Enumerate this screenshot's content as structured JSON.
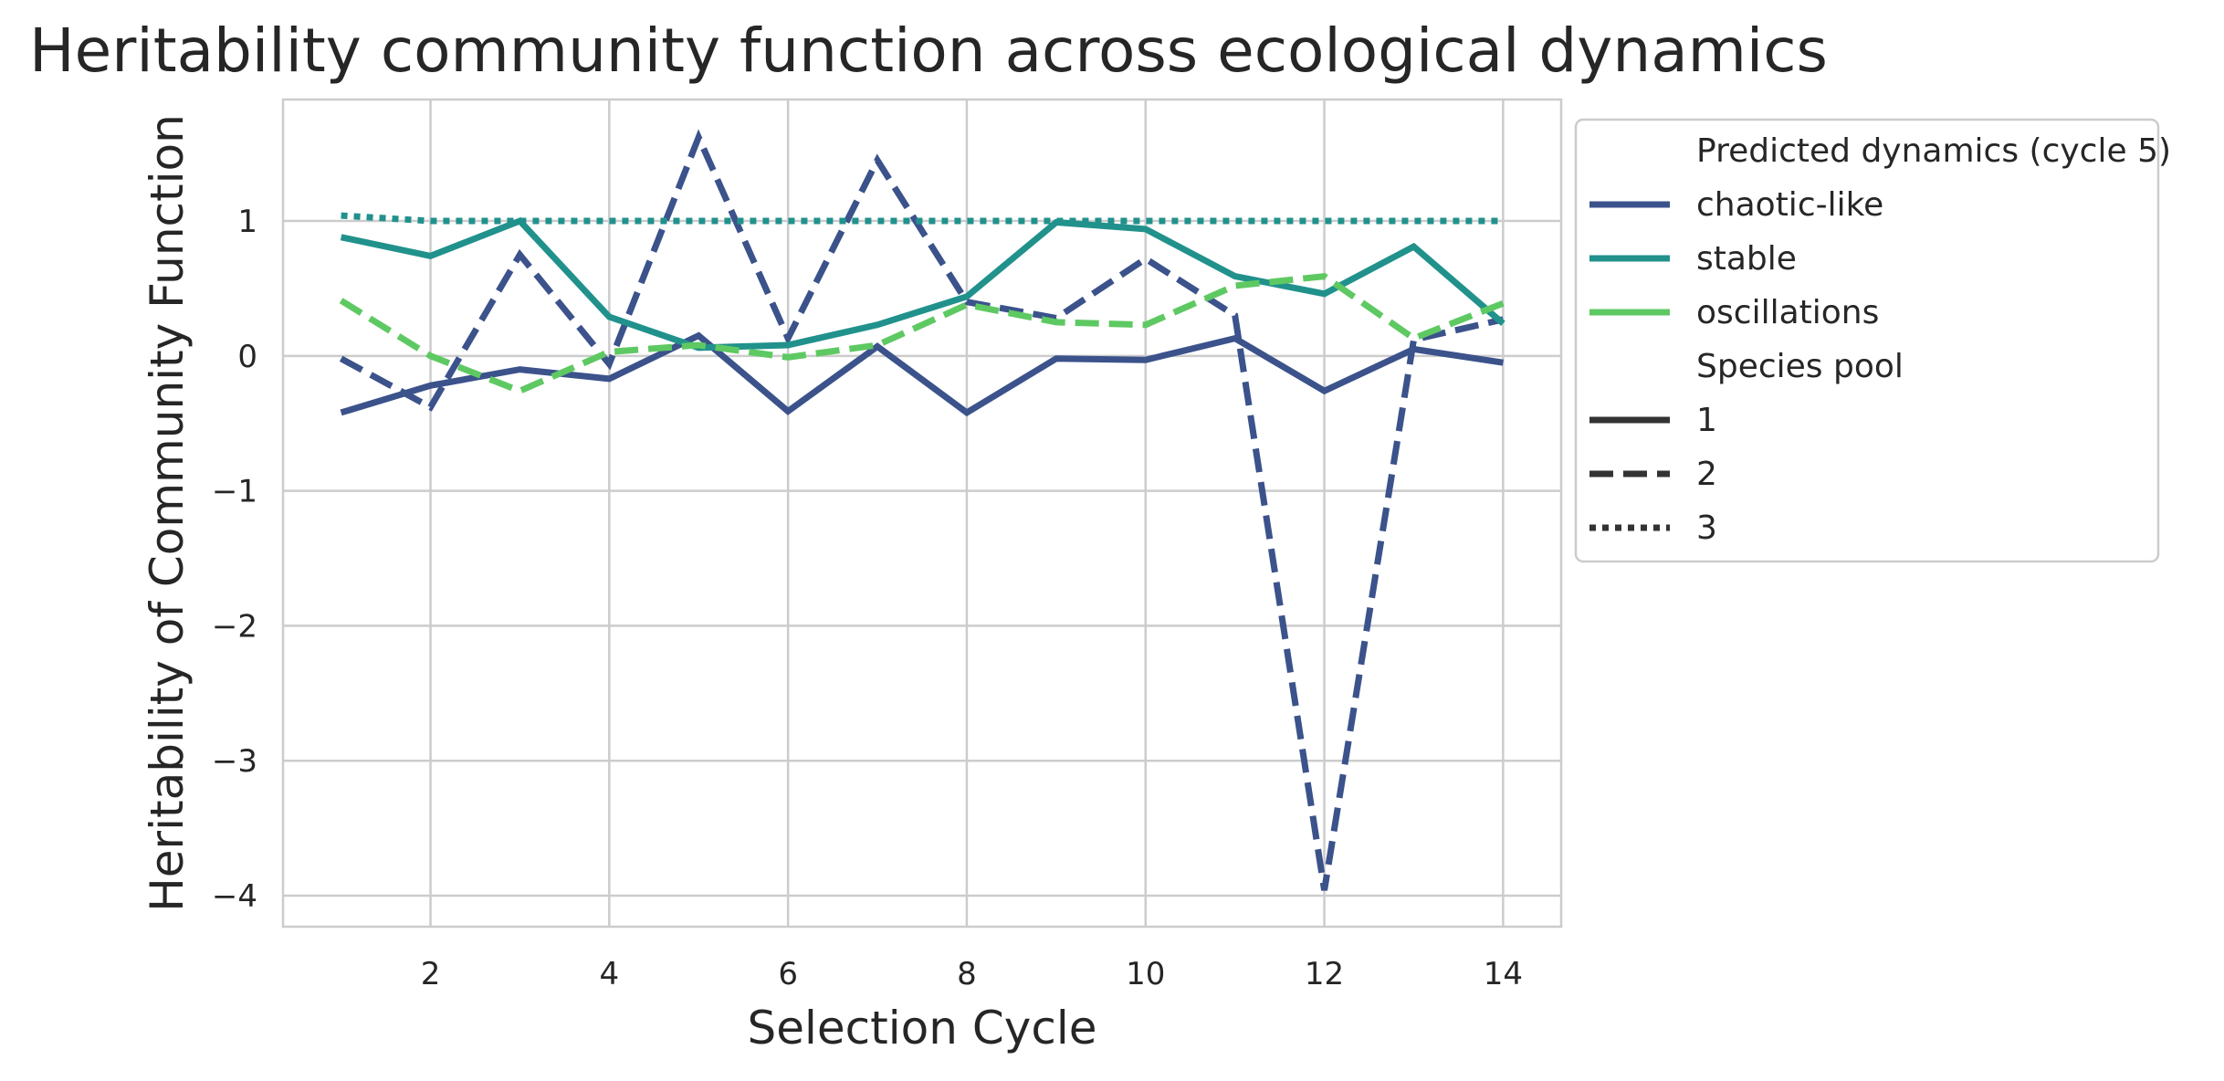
{
  "chart_data": {
    "type": "line",
    "title": "Heritability community function across ecological dynamics",
    "xlabel": "Selection Cycle",
    "ylabel": "Heritability of Community Function",
    "xlim": [
      0.35,
      14.65
    ],
    "ylim": [
      -4.23,
      1.9
    ],
    "xticks": [
      2,
      4,
      6,
      8,
      10,
      12,
      14
    ],
    "yticks": [
      -4,
      -3,
      -2,
      -1,
      0,
      1
    ],
    "grid": true,
    "legend": {
      "placement": "outside-right",
      "hue_title": "Predicted dynamics (cycle 5)",
      "hue_entries": [
        {
          "label": "chaotic-like",
          "color": "#3b528b"
        },
        {
          "label": "stable",
          "color": "#21918c"
        },
        {
          "label": "oscillations",
          "color": "#5ec962"
        }
      ],
      "style_title": "Species pool",
      "style_entries": [
        {
          "label": "1",
          "dash": "solid"
        },
        {
          "label": "2",
          "dash": "dashed"
        },
        {
          "label": "3",
          "dash": "dotted"
        }
      ]
    },
    "series": [
      {
        "name": "chaotic-like / 1",
        "color": "#3b528b",
        "dash": "solid",
        "x": [
          1,
          2,
          3,
          4,
          5,
          6,
          7,
          8,
          9,
          10,
          11,
          12,
          13,
          14
        ],
        "y": [
          -0.42,
          -0.22,
          -0.1,
          -0.17,
          0.15,
          -0.41,
          0.07,
          -0.42,
          -0.02,
          -0.03,
          0.13,
          -0.26,
          0.05,
          -0.05
        ]
      },
      {
        "name": "chaotic-like / 2",
        "color": "#3b528b",
        "dash": "dashed",
        "x": [
          1,
          2,
          3,
          4,
          5,
          6,
          7,
          8,
          9,
          10,
          11,
          12,
          13,
          14
        ],
        "y": [
          -0.02,
          -0.38,
          0.75,
          -0.06,
          1.62,
          0.13,
          1.45,
          0.4,
          0.28,
          0.72,
          0.3,
          -3.96,
          0.12,
          0.27
        ]
      },
      {
        "name": "stable / 1",
        "color": "#21918c",
        "dash": "solid",
        "x": [
          1,
          2,
          3,
          4,
          5,
          6,
          7,
          8,
          9,
          10,
          11,
          12,
          13,
          14
        ],
        "y": [
          0.88,
          0.74,
          1.0,
          0.29,
          0.06,
          0.08,
          0.23,
          0.44,
          0.99,
          0.94,
          0.59,
          0.46,
          0.81,
          0.24
        ]
      },
      {
        "name": "stable / 3",
        "color": "#21918c",
        "dash": "dotted",
        "x": [
          1,
          2,
          3,
          4,
          5,
          6,
          7,
          8,
          9,
          10,
          11,
          12,
          13,
          14
        ],
        "y": [
          1.04,
          1.0,
          1.0,
          1.0,
          1.0,
          1.0,
          1.0,
          1.0,
          1.0,
          1.0,
          1.0,
          1.0,
          1.0,
          1.0
        ]
      },
      {
        "name": "oscillations / 2",
        "color": "#5ec962",
        "dash": "dashed",
        "x": [
          1,
          2,
          3,
          4,
          5,
          6,
          7,
          8,
          9,
          10,
          11,
          12,
          13,
          14
        ],
        "y": [
          0.41,
          0.0,
          -0.26,
          0.03,
          0.08,
          -0.01,
          0.08,
          0.38,
          0.25,
          0.23,
          0.52,
          0.59,
          0.13,
          0.39
        ]
      }
    ]
  }
}
